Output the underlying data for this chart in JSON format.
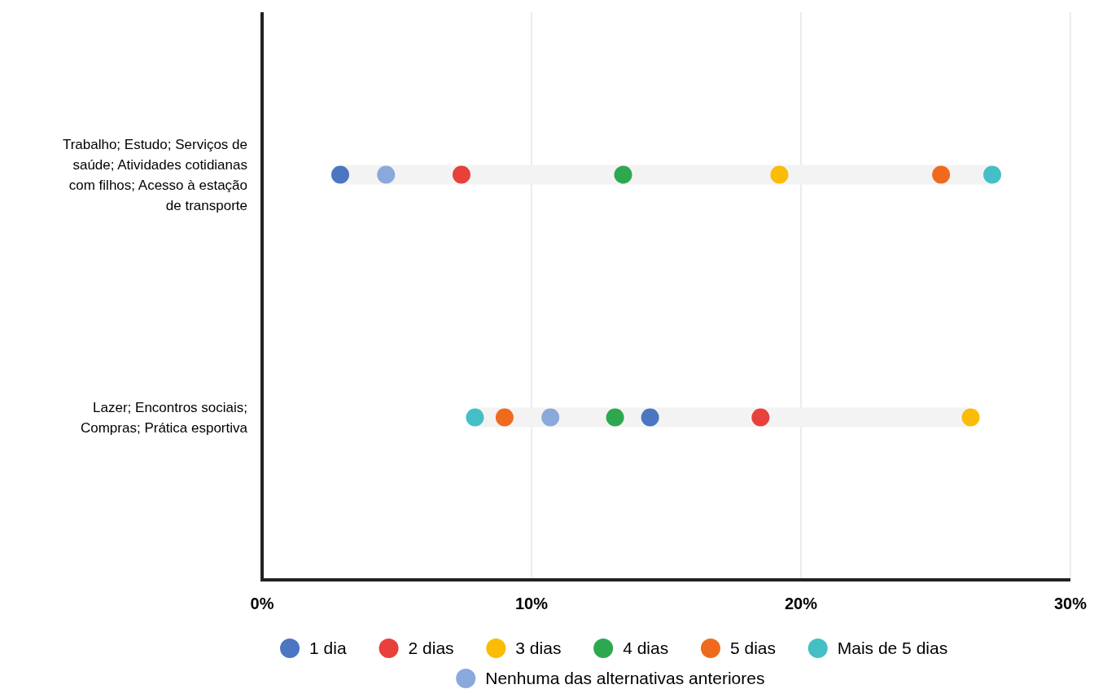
{
  "chart_data": {
    "type": "scatter",
    "orientation": "horizontal",
    "categories": [
      "Trabalho; Estudo; Serviços de saúde; Atividades cotidianas com filhos; Acesso à estação de transporte",
      "Lazer; Encontros sociais; Compras; Prática esportiva"
    ],
    "series": [
      {
        "type": "bar",
        "color": "#f3f3f3",
        "base": [
          2.9,
          7.9
        ],
        "values": [
          24.2,
          18.4
        ]
      },
      {
        "name": "1 dia",
        "color": "#4a76c2",
        "values": [
          2.9,
          14.4
        ]
      },
      {
        "name": "2 dias",
        "color": "#e8403a",
        "values": [
          7.4,
          18.5
        ]
      },
      {
        "name": "3 dias",
        "color": "#fbbc05",
        "values": [
          19.2,
          26.3
        ]
      },
      {
        "name": "4 dias",
        "color": "#2ea84f",
        "values": [
          13.4,
          13.1
        ]
      },
      {
        "name": "5 dias",
        "color": "#f06a1e",
        "values": [
          25.2,
          9.0
        ]
      },
      {
        "name": "Mais de 5 dias",
        "color": "#45bfc6",
        "values": [
          27.1,
          7.9
        ]
      },
      {
        "name": "Nenhuma das alternativas anteriores",
        "color": "#89a8dc",
        "values": [
          4.6,
          10.7
        ]
      }
    ],
    "xlim": [
      0,
      30
    ],
    "xticks": [
      {
        "value": 0,
        "label": "0%"
      },
      {
        "value": 10,
        "label": "10%"
      },
      {
        "value": 20,
        "label": "20%"
      },
      {
        "value": 30,
        "label": "30%"
      }
    ],
    "grid": "x",
    "legend": "bottom",
    "marker": "circle"
  }
}
